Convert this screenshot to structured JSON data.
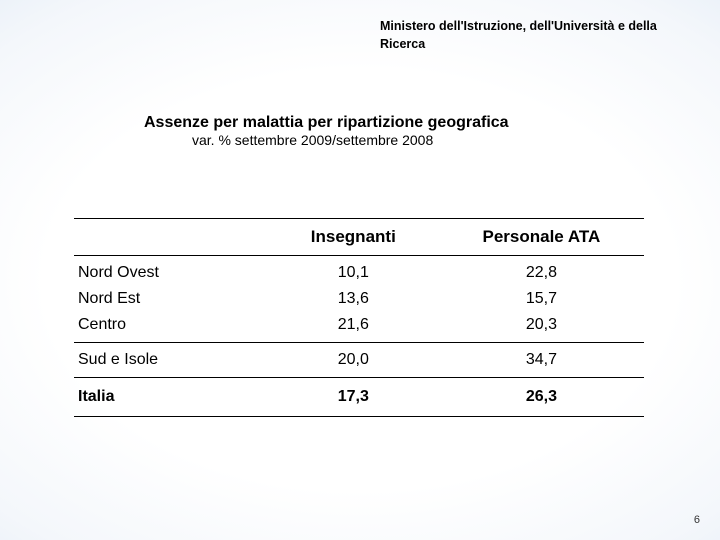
{
  "header": {
    "text": "Ministero dell'Istruzione, dell'Università e della Ricerca"
  },
  "titleBlock": {
    "title": "Assenze per malattia per ripartizione geografica",
    "subtitle": "var. % settembre 2009/settembre 2008"
  },
  "table": {
    "columns": [
      "",
      "Insegnanti",
      "Personale ATA"
    ],
    "col_widths_pct": [
      34,
      30,
      36
    ],
    "header_fontsize": 17,
    "body_fontsize": 16,
    "header_border_color": "#000000",
    "section_border_color": "#000000",
    "sections": [
      {
        "rows": [
          {
            "label": "Nord Ovest",
            "values": [
              "10,1",
              "22,8"
            ]
          },
          {
            "label": "Nord Est",
            "values": [
              "13,6",
              "15,7"
            ]
          },
          {
            "label": "Centro",
            "values": [
              "21,6",
              "20,3"
            ]
          }
        ]
      },
      {
        "rows": [
          {
            "label": "Sud e Isole",
            "values": [
              "20,0",
              "34,7"
            ]
          }
        ]
      }
    ],
    "total": {
      "label": "Italia",
      "values": [
        "17,3",
        "26,3"
      ]
    }
  },
  "page_number": "6",
  "background_colors": {
    "center": "#ffffff",
    "mid": "#dde9f4",
    "edge": "#c7dbed"
  }
}
